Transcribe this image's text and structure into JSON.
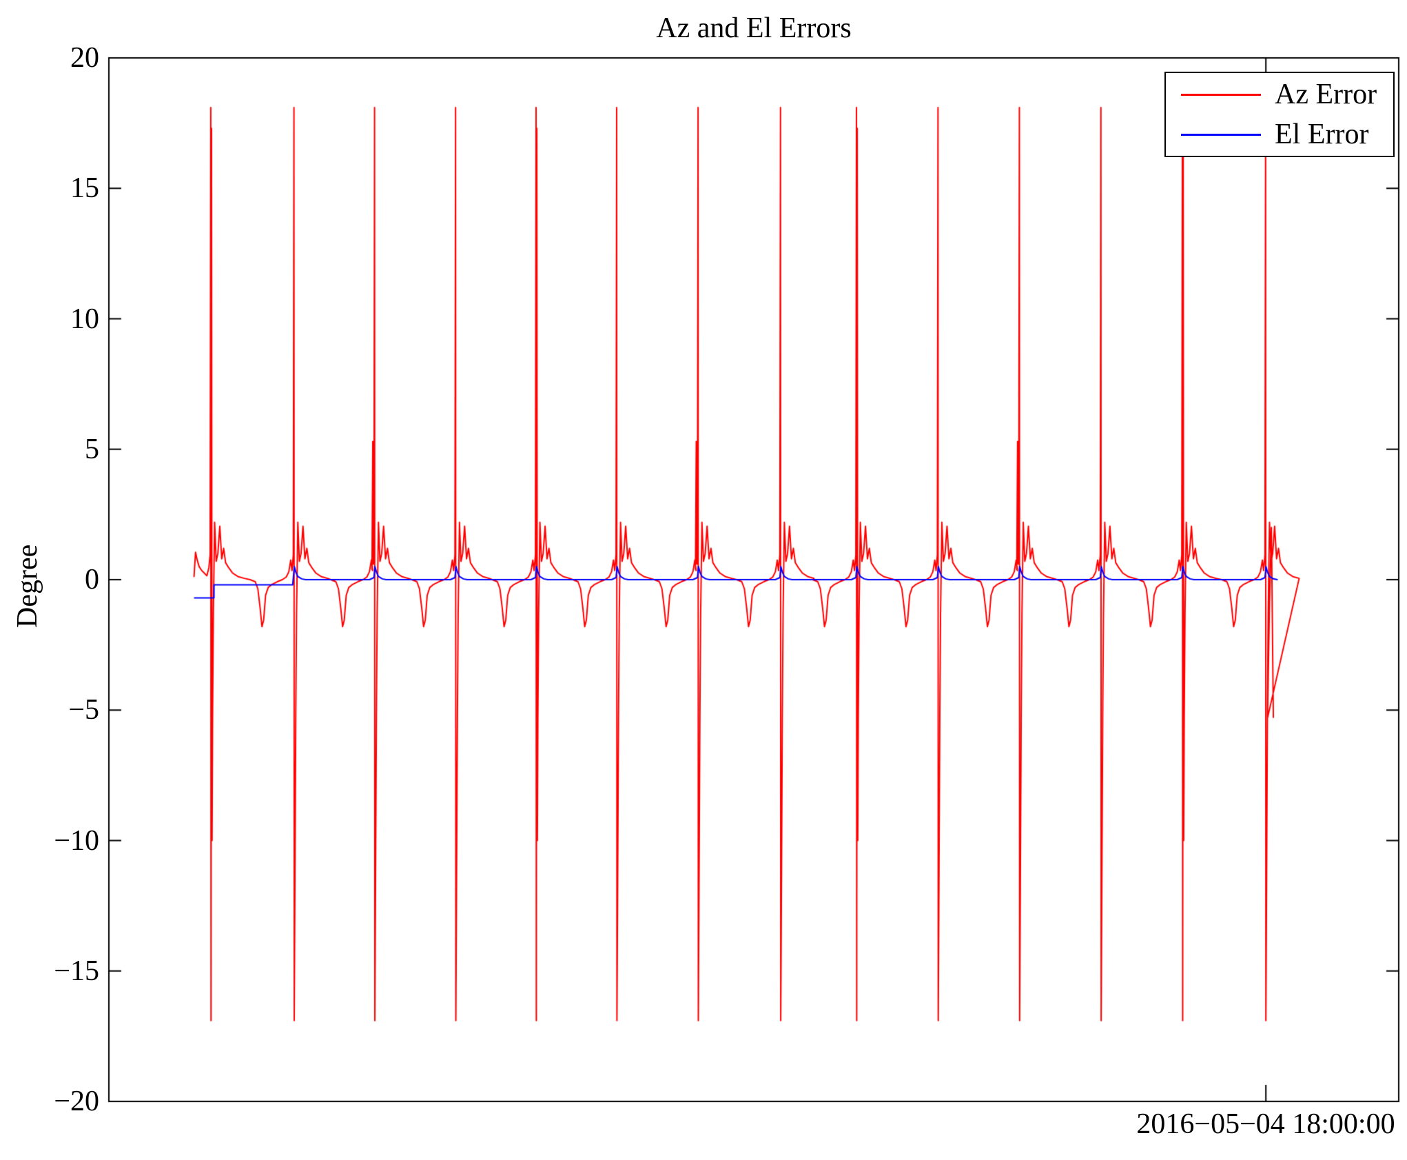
{
  "chart_data": {
    "type": "line",
    "title": "Az and El Errors",
    "ylabel": "Degree",
    "xlabel": "",
    "ylim": [
      -20,
      20
    ],
    "yticks": [
      20,
      15,
      10,
      5,
      0,
      -5,
      -10,
      -15,
      -20
    ],
    "x_tick_label": "2016−05−04 18:00:00",
    "x_tick_pos": 0.897,
    "grid": false,
    "legend_position": "upper-right",
    "series": [
      {
        "name": "Az Error",
        "color": "#FF0000"
      },
      {
        "name": "El Error",
        "color": "#0000FF"
      }
    ],
    "az": {
      "color": "#FF0000",
      "cycle_centers": [
        0.079,
        0.1435,
        0.206,
        0.2688,
        0.3312,
        0.3937,
        0.4568,
        0.5207,
        0.5796,
        0.6428,
        0.7059,
        0.7691,
        0.8323,
        0.8968
      ],
      "spike_top": 18.1,
      "spike_bottom": -16.9,
      "post_drop": -5.3,
      "second_peak_value": 17.3,
      "deep_drop_value": -10.0,
      "mid_spike_value": 5.3,
      "second_peak_cycles": [
        0,
        4,
        8,
        12
      ],
      "deep_drop_cycles": [
        0,
        4,
        8,
        12
      ],
      "mid_spike_cycles": [
        2,
        6,
        10
      ],
      "lead_in": [
        [
          -0.013,
          0.1
        ],
        [
          -0.0118,
          1.05
        ],
        [
          -0.0105,
          0.75
        ],
        [
          -0.009,
          0.5
        ],
        [
          -0.007,
          0.35
        ],
        [
          -0.005,
          0.25
        ],
        [
          -0.003,
          0.15
        ],
        [
          -0.0015,
          0.45
        ]
      ],
      "post_template": [
        [
          0.003,
          2.2
        ],
        [
          0.0042,
          0.7
        ],
        [
          0.0055,
          1.0
        ],
        [
          0.007,
          2.05
        ],
        [
          0.0085,
          0.8
        ],
        [
          0.01,
          1.2
        ],
        [
          0.0115,
          0.65
        ],
        [
          0.014,
          0.45
        ],
        [
          0.017,
          0.25
        ],
        [
          0.021,
          0.12
        ],
        [
          0.026,
          0.05
        ]
      ],
      "inter_template": [
        [
          -0.034,
          0.0
        ],
        [
          -0.03,
          -0.08
        ],
        [
          -0.028,
          -0.35
        ],
        [
          -0.0262,
          -1.1
        ],
        [
          -0.0248,
          -1.8
        ],
        [
          -0.0235,
          -1.55
        ],
        [
          -0.022,
          -0.6
        ],
        [
          -0.02,
          -0.3
        ],
        [
          -0.017,
          -0.18
        ],
        [
          -0.013,
          -0.08
        ],
        [
          -0.009,
          0.0
        ],
        [
          -0.006,
          0.1
        ],
        [
          -0.004,
          0.3
        ],
        [
          -0.0025,
          0.75
        ],
        [
          -0.0015,
          0.35
        ]
      ],
      "end_tail": [
        [
          0.0015,
          -5.3
        ],
        [
          0.003,
          -0.9
        ],
        [
          0.0045,
          2.0
        ],
        [
          0.006,
          -5.3
        ]
      ]
    },
    "el": {
      "color": "#0000FF",
      "baseline": 0.0,
      "start_steps": [
        [
          0.066,
          -0.7
        ],
        [
          0.0815,
          -0.7
        ],
        [
          0.0815,
          -0.2
        ],
        [
          0.1425,
          -0.2
        ]
      ],
      "bump_template": [
        [
          -0.0005,
          0.08
        ],
        [
          0.0003,
          0.5
        ],
        [
          0.0015,
          0.28
        ],
        [
          0.003,
          0.12
        ],
        [
          0.006,
          0.03
        ]
      ],
      "bump_cycles": [
        1,
        2,
        3,
        4,
        5,
        6,
        7,
        8,
        9,
        10,
        11,
        12,
        13
      ],
      "end_x": 0.902
    }
  }
}
